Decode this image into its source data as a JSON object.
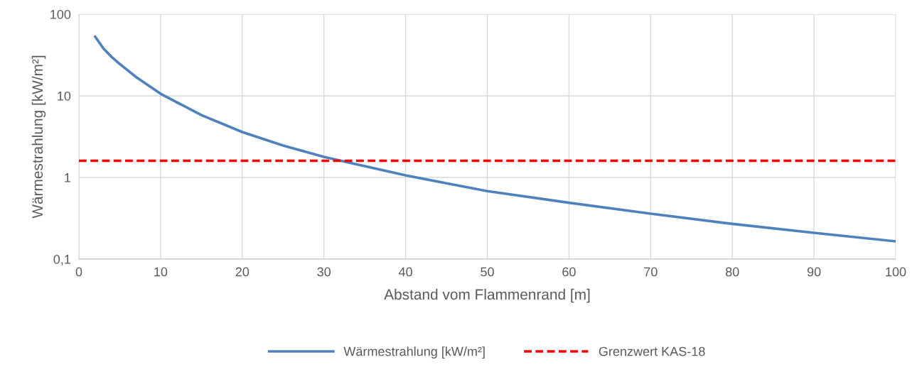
{
  "chart_data": {
    "type": "line",
    "xlabel": "Abstand vom Flammenrand [m]",
    "ylabel": "Wärmestrahlung [kW/m²]",
    "log": "y",
    "xlim": [
      0,
      100
    ],
    "xticks": [
      0,
      10,
      20,
      30,
      40,
      50,
      60,
      70,
      80,
      90,
      100
    ],
    "ylim": [
      0.1,
      100
    ],
    "yticks": [
      {
        "value": 0.1,
        "label": "0,1"
      },
      1,
      10,
      100
    ],
    "grid": true,
    "legend": "bottom",
    "line_style": "solid",
    "marker": "none",
    "series": [
      {
        "name": "Wärmestrahlung [kW/m²]",
        "color": "#4f81bd",
        "x": [
          2,
          3,
          4,
          5,
          7,
          10,
          15,
          20,
          25,
          30,
          40,
          50,
          60,
          70,
          80,
          90,
          100
        ],
        "values": [
          53,
          38,
          30,
          24.6,
          17,
          10.6,
          5.8,
          3.6,
          2.46,
          1.79,
          1.06,
          0.68,
          0.49,
          0.36,
          0.27,
          0.21,
          0.165
        ]
      }
    ],
    "ref_lines": [
      {
        "axis": "y",
        "value": 1.6,
        "label": "Grenzwert KAS-18",
        "color": "#ff0000",
        "line_style": "dashed"
      }
    ]
  }
}
